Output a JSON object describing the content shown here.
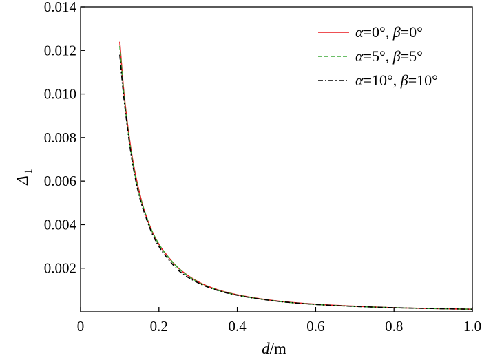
{
  "chart_data": {
    "type": "line",
    "xlabel": {
      "var": "d",
      "unit": "/m"
    },
    "ylabel": {
      "var": "Δ",
      "sub": "1"
    },
    "xlim": [
      0,
      1.0
    ],
    "ylim": [
      0,
      0.014
    ],
    "xticks": [
      {
        "value": 0,
        "label": "0"
      },
      {
        "value": 0.2,
        "label": "0.2"
      },
      {
        "value": 0.4,
        "label": "0.4"
      },
      {
        "value": 0.6,
        "label": "0.6"
      },
      {
        "value": 0.8,
        "label": "0.8"
      },
      {
        "value": 1.0,
        "label": "1.0"
      }
    ],
    "yticks": [
      {
        "value": 0.002,
        "label": "0.002"
      },
      {
        "value": 0.004,
        "label": "0.004"
      },
      {
        "value": 0.006,
        "label": "0.006"
      },
      {
        "value": 0.008,
        "label": "0.008"
      },
      {
        "value": 0.01,
        "label": "0.010"
      },
      {
        "value": 0.012,
        "label": "0.012"
      },
      {
        "value": 0.014,
        "label": "0.014"
      }
    ],
    "grid": false,
    "legend_position": "top-right",
    "x": [
      0.1,
      0.11,
      0.12,
      0.13,
      0.14,
      0.15,
      0.16,
      0.18,
      0.2,
      0.22,
      0.25,
      0.3,
      0.35,
      0.4,
      0.5,
      0.6,
      0.7,
      0.8,
      0.9,
      1.0
    ],
    "series": [
      {
        "name": {
          "p1": "α",
          "p2": "=0°, ",
          "p3": "β",
          "p4": "=0°"
        },
        "color": "#e8161c",
        "dash": "solid",
        "values": [
          0.0124,
          0.0102,
          0.0086,
          0.0073,
          0.0063,
          0.0055,
          0.0048,
          0.0038,
          0.0031,
          0.0026,
          0.002,
          0.00138,
          0.00101,
          0.00078,
          0.0005,
          0.00035,
          0.00026,
          0.00019,
          0.00015,
          0.00012
        ]
      },
      {
        "name": {
          "p1": "α",
          "p2": "=5°, ",
          "p3": "β",
          "p4": "=5°"
        },
        "color": "#3aa935",
        "dash": "dashed",
        "values": [
          0.0122,
          0.0101,
          0.0085,
          0.0072,
          0.0062,
          0.0054,
          0.0048,
          0.0038,
          0.0031,
          0.0026,
          0.002,
          0.00136,
          0.001,
          0.00077,
          0.00049,
          0.00034,
          0.00025,
          0.00019,
          0.00015,
          0.00012
        ]
      },
      {
        "name": {
          "p1": "α",
          "p2": "=10°, ",
          "p3": "β",
          "p4": "=10°"
        },
        "color": "#000000",
        "dash": "dashdot",
        "values": [
          0.0118,
          0.0099,
          0.0084,
          0.0071,
          0.0061,
          0.0053,
          0.0047,
          0.0037,
          0.003,
          0.0025,
          0.0019,
          0.00133,
          0.00098,
          0.00076,
          0.00049,
          0.00034,
          0.00025,
          0.00019,
          0.00015,
          0.00012
        ]
      }
    ]
  }
}
